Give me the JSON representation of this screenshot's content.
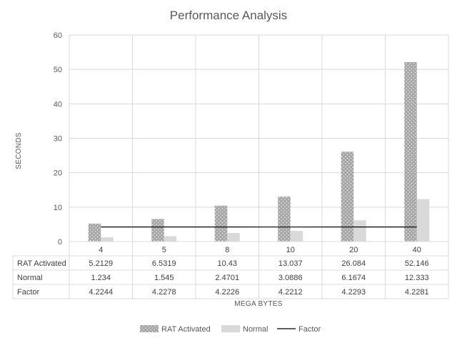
{
  "chart_data": {
    "type": "bar",
    "title": "Performance Analysis",
    "xlabel": "MEGA BYTES",
    "ylabel": "SECONDS",
    "categories": [
      "4",
      "5",
      "8",
      "10",
      "20",
      "40"
    ],
    "ylim": [
      0,
      60
    ],
    "yticks": [
      0,
      10,
      20,
      30,
      40,
      50,
      60
    ],
    "grid": true,
    "legend_position": "bottom",
    "series": [
      {
        "name": "RAT Activated",
        "type": "bar",
        "values": [
          5.2129,
          6.5319,
          10.43,
          13.037,
          26.084,
          52.146
        ],
        "labels": [
          "5.2129",
          "6.5319",
          "10.43",
          "13.037",
          "26.084",
          "52.146"
        ],
        "color": "#a6a6a6",
        "pattern": "dotted"
      },
      {
        "name": "Normal",
        "type": "bar",
        "values": [
          1.234,
          1.545,
          2.4701,
          3.0886,
          6.1674,
          12.333
        ],
        "labels": [
          "1.234",
          "1.545",
          "2.4701",
          "3.0886",
          "6.1674",
          "12.333"
        ],
        "color": "#d9d9d9"
      },
      {
        "name": "Factor",
        "type": "line",
        "values": [
          4.2244,
          4.2278,
          4.2226,
          4.2212,
          4.2293,
          4.2281
        ],
        "labels": [
          "4.2244",
          "4.2278",
          "4.2226",
          "4.2212",
          "4.2293",
          "4.2281"
        ],
        "color": "#000000"
      }
    ]
  }
}
